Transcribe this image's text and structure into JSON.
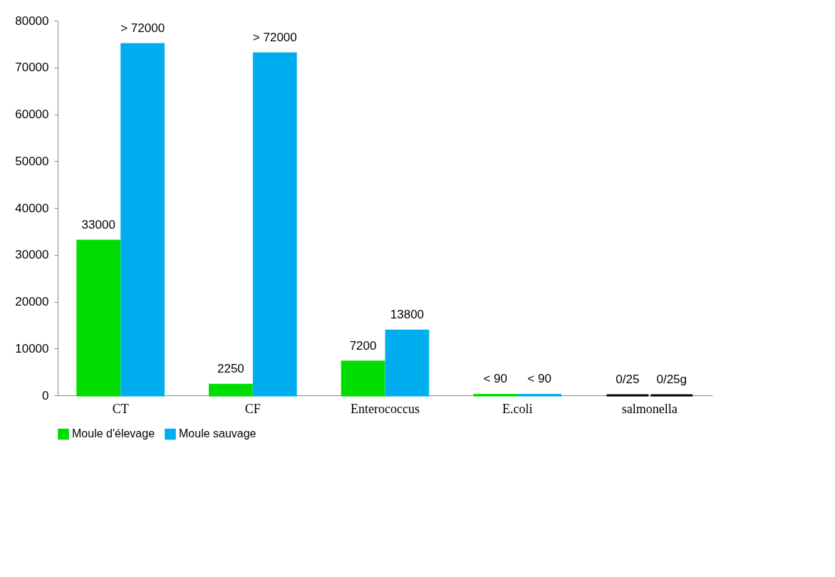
{
  "chart_data": {
    "type": "bar",
    "categories": [
      "CT",
      "CF",
      "Enterococcus",
      "E.coli",
      "salmonella"
    ],
    "series": [
      {
        "name": "Moule d'élevage",
        "color": "#00dd00",
        "colors": [
          "#00dd00",
          "#00dd00",
          "#00dd00",
          "#00dd00",
          "#000000"
        ],
        "values": [
          33000,
          2250,
          7200,
          90,
          0
        ],
        "value_labels": [
          "33000",
          "2250",
          "7200",
          "< 90",
          "0/25"
        ]
      },
      {
        "name": "Moule sauvage",
        "color": "#00aeef",
        "colors": [
          "#00aeef",
          "#00aeef",
          "#00aeef",
          "#00aeef",
          "#000000"
        ],
        "values": [
          75000,
          73000,
          13800,
          90,
          0
        ],
        "value_labels": [
          "> 72000",
          "> 72000",
          "13800",
          "< 90",
          "0/25g"
        ]
      }
    ],
    "ylim": [
      0,
      80000
    ],
    "yticks": [
      0,
      10000,
      20000,
      30000,
      40000,
      50000,
      60000,
      70000,
      80000
    ],
    "grid": false,
    "legend": "bottom"
  }
}
